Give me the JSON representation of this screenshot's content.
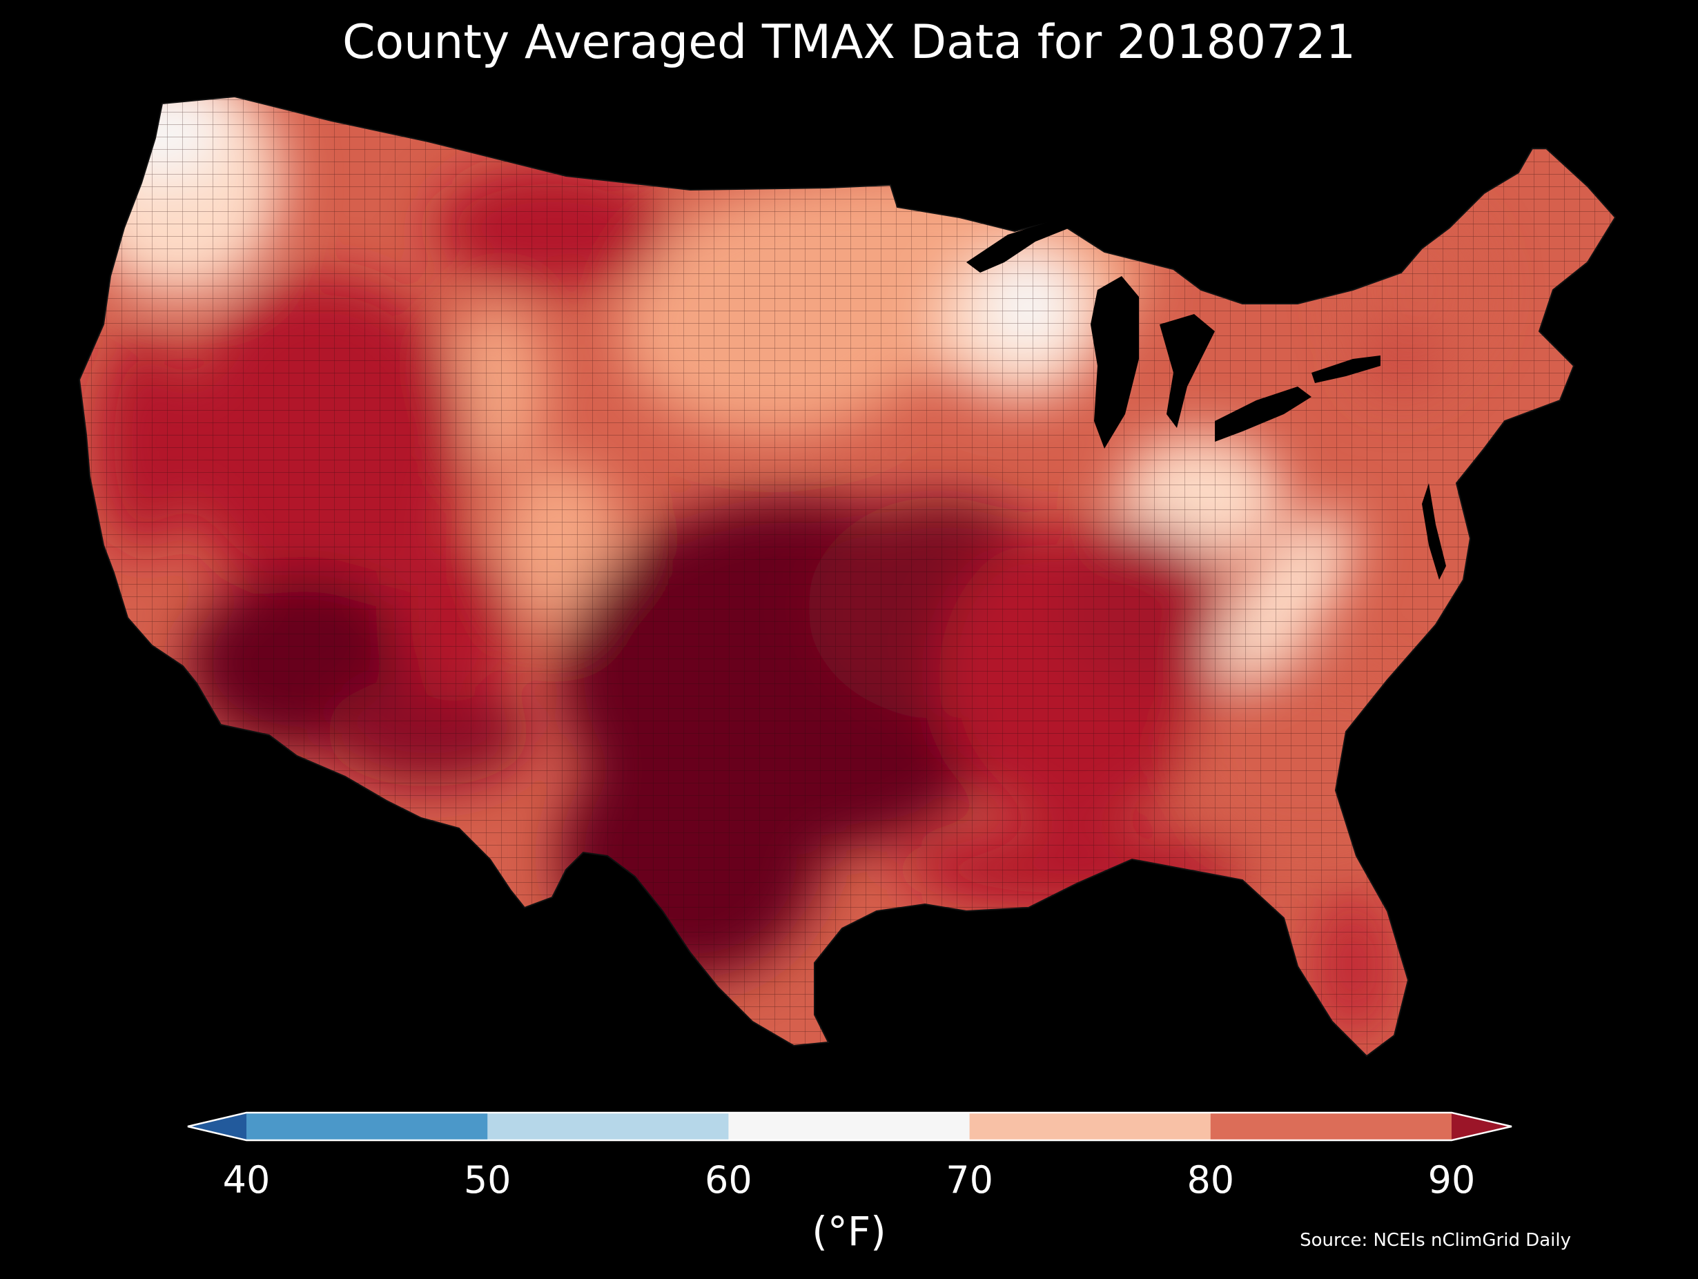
{
  "title": "County Averaged TMAX Data for 20180721",
  "legend": {
    "unit": "(°F)",
    "ticks": [
      "40",
      "50",
      "60",
      "70",
      "80",
      "90"
    ],
    "bins": [
      {
        "from": 40,
        "to": 50,
        "color": "#4b98c9"
      },
      {
        "from": 50,
        "to": 60,
        "color": "#b6d7e9"
      },
      {
        "from": 60,
        "to": 70,
        "color": "#f6f6f6"
      },
      {
        "from": 70,
        "to": 80,
        "color": "#f8c1a6"
      },
      {
        "from": 80,
        "to": 90,
        "color": "#dc6d58"
      }
    ],
    "under_color": "#225a9c",
    "over_color": "#9b1528"
  },
  "source": "Source: NCEIs nClimGrid Daily",
  "map_colors": {
    "hottest": "#67001f",
    "hot": "#b2182b",
    "warm": "#d6604d",
    "mild": "#f4a582",
    "cool": "#fddbc7",
    "cold": "#f7f7f7"
  }
}
